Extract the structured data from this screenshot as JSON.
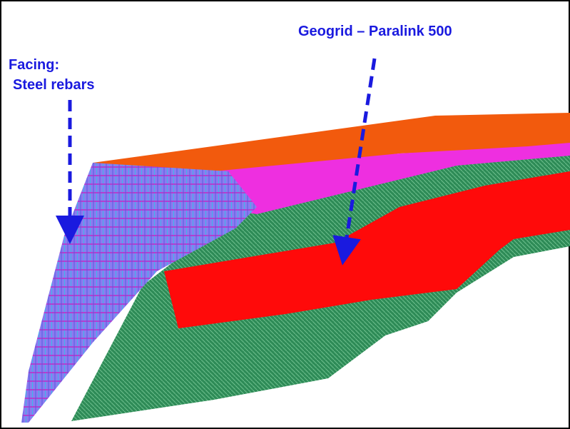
{
  "annotations": {
    "facing": {
      "line1": "Facing:",
      "line2": "Steel rebars"
    },
    "geogrid": "Geogrid – Paralink 500"
  }
}
